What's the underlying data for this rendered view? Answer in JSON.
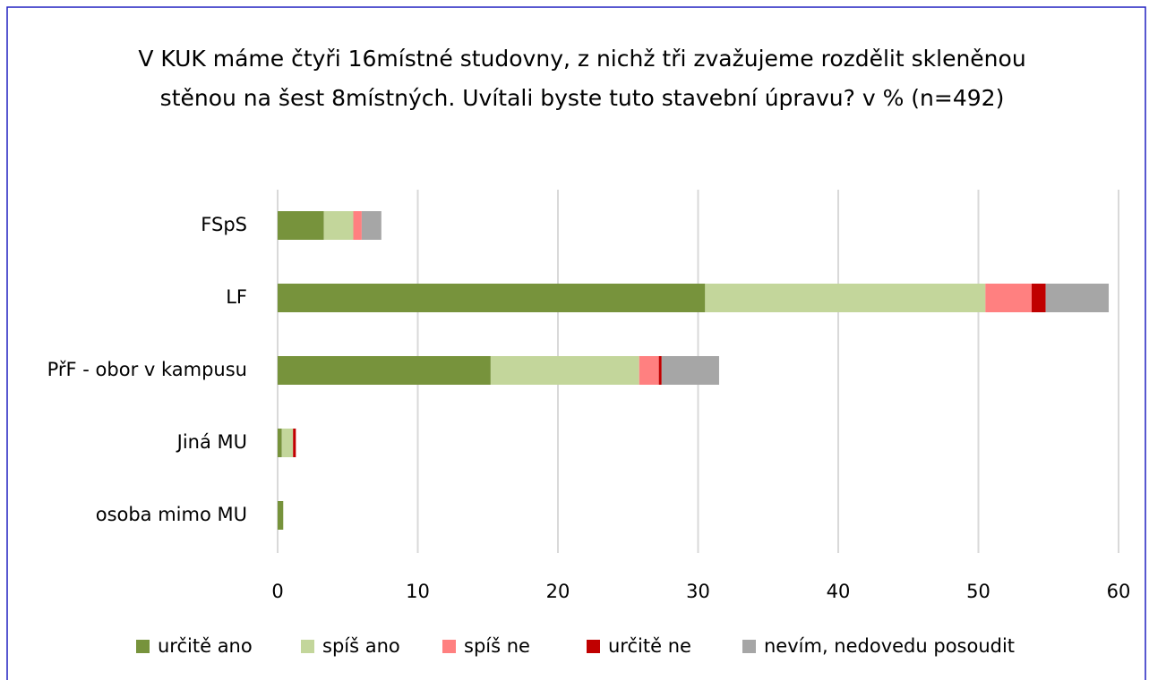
{
  "chart_data": {
    "type": "stacked-bar-horizontal",
    "title": "V KUK máme čtyři 16místné studovny, z nichž tři zvažujeme rozdělit skleněnou stěnou na šest 8místných. Uvítali byste tuto stavební úpravu? v % (n=492)",
    "categories": [
      "FSpS",
      "LF",
      "PřF - obor v kampusu",
      "Jiná MU",
      "osoba mimo MU"
    ],
    "series": [
      {
        "name": "určitě ano",
        "color": "#77933c",
        "values": [
          3.3,
          30.5,
          15.2,
          0.3,
          0.4
        ]
      },
      {
        "name": "spíš ano",
        "color": "#c3d69b",
        "values": [
          2.1,
          20.0,
          10.6,
          0.8,
          0
        ]
      },
      {
        "name": "spíš ne",
        "color": "#ff8080",
        "values": [
          0.6,
          3.3,
          1.4,
          0,
          0
        ]
      },
      {
        "name": "určitě ne",
        "color": "#c00000",
        "values": [
          0,
          1.0,
          0.2,
          0.2,
          0
        ]
      },
      {
        "name": "nevím, nedovedu posoudit",
        "color": "#a6a6a6",
        "values": [
          1.4,
          4.5,
          4.1,
          0,
          0
        ]
      }
    ],
    "xlim": [
      0,
      60
    ],
    "xticks": [
      0,
      10,
      20,
      30,
      40,
      50,
      60
    ],
    "grid": true,
    "legend": "bottom"
  }
}
